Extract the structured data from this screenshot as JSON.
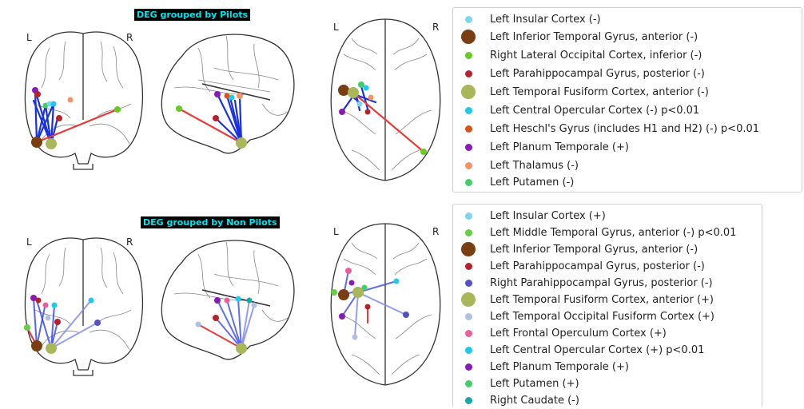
{
  "panels": [
    {
      "title": "DEG grouped by Pilots",
      "left_label": "L",
      "right_label": "R",
      "top_left_label": "L",
      "top_right_label": "R",
      "legend": [
        {
          "label": "Left Insular Cortex (-)",
          "color": "#7dd6ee",
          "size": "small"
        },
        {
          "label": "Left Inferior Temporal Gyrus, anterior  (-)",
          "color": "#7a3e13",
          "size": "large"
        },
        {
          "label": "Right Lateral Occipital Cortex, inferior  (-)",
          "color": "#66cc22",
          "size": "small"
        },
        {
          "label": "Left Parahippocampal Gyrus, posterior  (-)",
          "color": "#b5222e",
          "size": "small"
        },
        {
          "label": "Left Temporal Fusiform Cortex, anterior  (-)",
          "color": "#a9b75a",
          "size": "large"
        },
        {
          "label": "Left Central Opercular Cortex (-) p<0.01",
          "color": "#1ec8ee",
          "size": "small"
        },
        {
          "label": "Left Heschl's Gyrus (includes H1 and H2) (-) p<0.01",
          "color": "#d4541b",
          "size": "small"
        },
        {
          "label": "Left Planum Temporale (+)",
          "color": "#8a1ab8",
          "size": "small"
        },
        {
          "label": "Left Thalamus (-)",
          "color": "#f0956a",
          "size": "small"
        },
        {
          "label": "Left Putamen (-)",
          "color": "#45cc6a",
          "size": "small"
        }
      ]
    },
    {
      "title": "DEG grouped by Non Pilots",
      "left_label": "L",
      "right_label": "R",
      "top_left_label": "L",
      "top_right_label": "R",
      "legend": [
        {
          "label": "Left Insular Cortex (+)",
          "color": "#7dd6ee",
          "size": "small"
        },
        {
          "label": "Left Middle Temporal Gyrus, anterior  (-) p<0.01",
          "color": "#66cc44",
          "size": "small"
        },
        {
          "label": "Left Inferior Temporal Gyrus, anterior  (-)",
          "color": "#7a3e13",
          "size": "large"
        },
        {
          "label": "Left Parahippocampal Gyrus, posterior  (-)",
          "color": "#b5222e",
          "size": "small"
        },
        {
          "label": "Right Parahippocampal Gyrus, posterior  (-)",
          "color": "#5452c2",
          "size": "small"
        },
        {
          "label": "Left Temporal Fusiform Cortex, anterior  (+)",
          "color": "#a9b75a",
          "size": "large"
        },
        {
          "label": "Left Temporal Occipital Fusiform Cortex (+)",
          "color": "#b0bfe4",
          "size": "small"
        },
        {
          "label": "Left Frontal Operculum Cortex (+)",
          "color": "#e8609a",
          "size": "small"
        },
        {
          "label": "Left Central Opercular Cortex (+) p<0.01",
          "color": "#1ec8ee",
          "size": "small"
        },
        {
          "label": "Left Planum Temporale (+)",
          "color": "#8a1ab8",
          "size": "small"
        },
        {
          "label": "Left Putamen (+)",
          "color": "#45cc6a",
          "size": "small"
        },
        {
          "label": "Right Caudate (-)",
          "color": "#1aa7a6",
          "size": "small"
        }
      ]
    }
  ]
}
